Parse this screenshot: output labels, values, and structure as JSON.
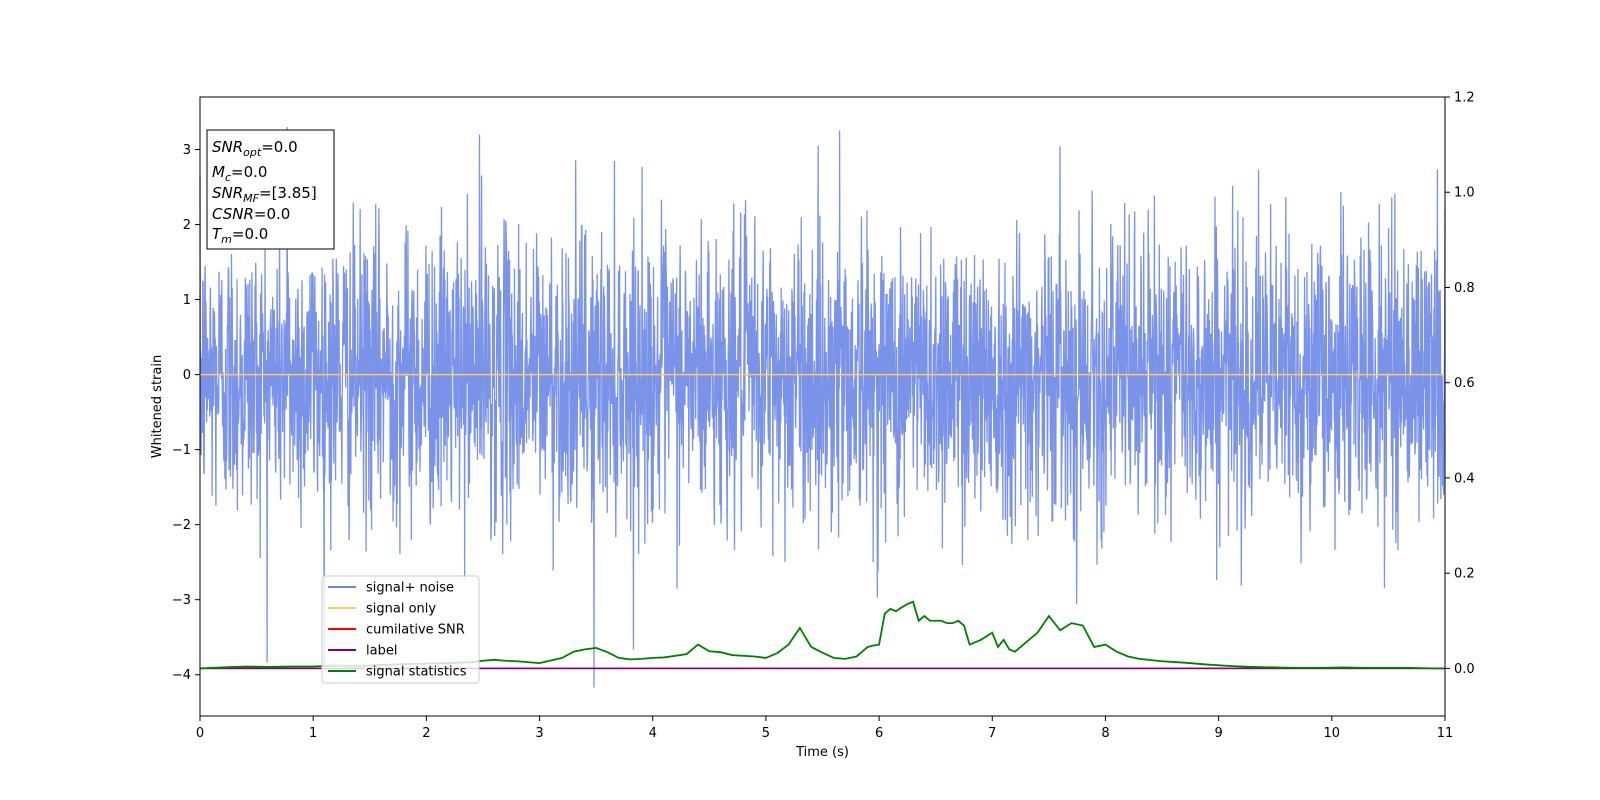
{
  "chart_data": {
    "type": "line",
    "xlabel": "Time (s)",
    "ylabel": "Whitened strain",
    "xlim": [
      0,
      11
    ],
    "ylim": [
      -4.55,
      3.7
    ],
    "y2lim": [
      -0.1,
      1.2
    ],
    "x_ticks": [
      "0",
      "1",
      "2",
      "3",
      "4",
      "5",
      "6",
      "7",
      "8",
      "9",
      "10",
      "11"
    ],
    "y_ticks": [
      "−4",
      "−3",
      "−2",
      "−1",
      "0",
      "1",
      "2",
      "3"
    ],
    "y2_ticks": [
      "0.0",
      "0.2",
      "0.4",
      "0.6",
      "0.8",
      "1.0",
      "1.2"
    ],
    "annotation": [
      {
        "base": "SNR",
        "sub": "opt",
        "value": "=0.0"
      },
      {
        "base": "M",
        "sub": "c",
        "value": "=0.0"
      },
      {
        "base": "SNR",
        "sub": "MF",
        "value": "=[3.85]"
      },
      {
        "base": "CSNR",
        "sub": "",
        "value": "=0.0"
      },
      {
        "base": "T",
        "sub": "m",
        "value": "=0.0"
      }
    ],
    "legend_position": "lower-left",
    "series": [
      {
        "name": "signal+ noise",
        "axis": "left",
        "color": "#6b86e6",
        "style": "dense noise",
        "approx_std": 0.95,
        "approx_range": [
          -4.17,
          3.3
        ],
        "notable_peaks": [
          {
            "x": 0.77,
            "y": 3.3
          },
          {
            "x": 2.47,
            "y": 3.2
          },
          {
            "x": 5.65,
            "y": 3.25
          },
          {
            "x": 3.48,
            "y": -4.17
          },
          {
            "x": 11.0,
            "y": 2.2
          }
        ]
      },
      {
        "name": "signal only",
        "axis": "left",
        "color": "#ffc864",
        "x": [
          0,
          11
        ],
        "y": [
          0,
          0
        ]
      },
      {
        "name": "cumilative SNR",
        "axis": "right",
        "color": "#ff0000",
        "x": [
          0,
          11
        ],
        "y": [
          0,
          0
        ]
      },
      {
        "name": "label",
        "axis": "right",
        "color": "#800080",
        "x": [
          0,
          11
        ],
        "y": [
          0,
          0
        ]
      },
      {
        "name": "signal statistics",
        "axis": "right",
        "color": "#008000",
        "x": [
          0,
          0.2,
          0.4,
          0.6,
          0.8,
          1.0,
          1.2,
          1.4,
          1.6,
          1.8,
          2.0,
          2.2,
          2.4,
          2.5,
          2.6,
          2.7,
          2.8,
          3.0,
          3.2,
          3.3,
          3.4,
          3.5,
          3.6,
          3.7,
          3.8,
          3.9,
          4.0,
          4.1,
          4.3,
          4.4,
          4.5,
          4.6,
          4.7,
          4.9,
          5.0,
          5.1,
          5.2,
          5.3,
          5.4,
          5.5,
          5.6,
          5.7,
          5.8,
          5.85,
          5.9,
          5.95,
          6.0,
          6.05,
          6.1,
          6.15,
          6.2,
          6.25,
          6.3,
          6.35,
          6.4,
          6.45,
          6.5,
          6.55,
          6.6,
          6.65,
          6.7,
          6.75,
          6.8,
          6.9,
          7.0,
          7.05,
          7.1,
          7.15,
          7.2,
          7.3,
          7.4,
          7.5,
          7.6,
          7.7,
          7.8,
          7.9,
          8.0,
          8.1,
          8.2,
          8.3,
          8.5,
          8.7,
          8.9,
          9.1,
          9.3,
          9.5,
          9.7,
          9.9,
          10.1,
          10.3,
          10.5,
          10.7,
          10.9,
          11.0
        ],
        "y": [
          0.0,
          0.002,
          0.004,
          0.003,
          0.004,
          0.004,
          0.006,
          0.005,
          0.007,
          0.009,
          0.01,
          0.011,
          0.013,
          0.016,
          0.018,
          0.016,
          0.015,
          0.011,
          0.022,
          0.035,
          0.04,
          0.043,
          0.034,
          0.022,
          0.019,
          0.02,
          0.022,
          0.023,
          0.03,
          0.05,
          0.036,
          0.034,
          0.028,
          0.025,
          0.022,
          0.032,
          0.05,
          0.085,
          0.045,
          0.033,
          0.022,
          0.02,
          0.025,
          0.035,
          0.045,
          0.048,
          0.05,
          0.115,
          0.125,
          0.12,
          0.128,
          0.135,
          0.14,
          0.1,
          0.11,
          0.1,
          0.1,
          0.1,
          0.095,
          0.095,
          0.1,
          0.09,
          0.05,
          0.06,
          0.075,
          0.045,
          0.06,
          0.04,
          0.035,
          0.055,
          0.075,
          0.11,
          0.08,
          0.095,
          0.09,
          0.045,
          0.05,
          0.035,
          0.025,
          0.02,
          0.015,
          0.012,
          0.008,
          0.005,
          0.003,
          0.002,
          0.001,
          0.001,
          0.002,
          0.001,
          0.001,
          0.001,
          0.0,
          0.0
        ]
      }
    ]
  }
}
